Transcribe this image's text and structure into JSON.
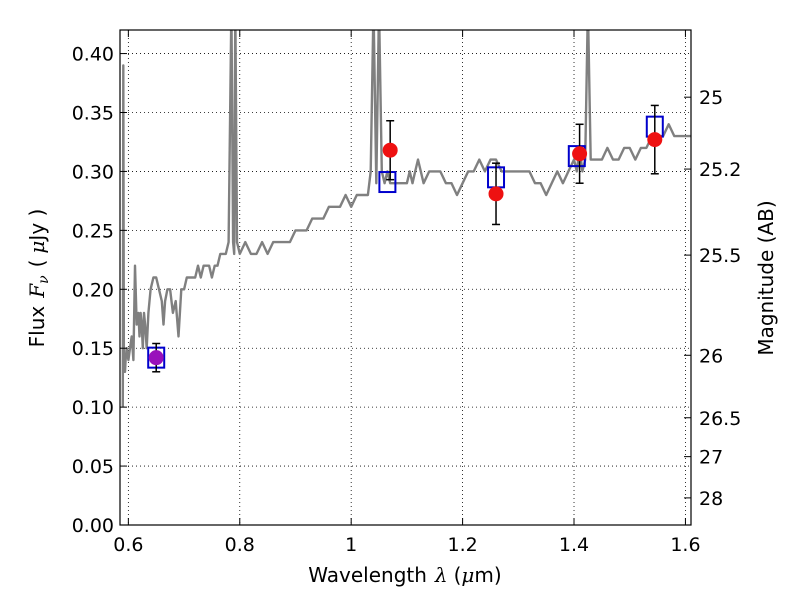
{
  "chart_data": {
    "type": "scatter",
    "xlabel": {
      "text": "Wavelength",
      "symbol": "λ",
      "unit_open": "(",
      "unit_mu": "μ",
      "unit_rest": "m)"
    },
    "ylabel": {
      "text": "Flux",
      "symbol": "F",
      "symbol_sub": "ν",
      "unit_open": "(",
      "unit_mu": "μ",
      "unit_rest": "Jy )"
    },
    "ylabel_right": "Magnitude (AB)",
    "xlim": [
      0.585,
      1.61
    ],
    "ylim": [
      0.0,
      0.42
    ],
    "grid": true,
    "xticks": [
      {
        "value": 0.6,
        "label": "0.6"
      },
      {
        "value": 0.8,
        "label": "0.8"
      },
      {
        "value": 1.0,
        "label": "1"
      },
      {
        "value": 1.2,
        "label": "1.2"
      },
      {
        "value": 1.4,
        "label": "1.4"
      },
      {
        "value": 1.6,
        "label": "1.6"
      }
    ],
    "yticks": [
      {
        "value": 0.0,
        "label": "0.00"
      },
      {
        "value": 0.05,
        "label": "0.05"
      },
      {
        "value": 0.1,
        "label": "0.10"
      },
      {
        "value": 0.15,
        "label": "0.15"
      },
      {
        "value": 0.2,
        "label": "0.20"
      },
      {
        "value": 0.25,
        "label": "0.25"
      },
      {
        "value": 0.3,
        "label": "0.30"
      },
      {
        "value": 0.35,
        "label": "0.35"
      },
      {
        "value": 0.4,
        "label": "0.40"
      }
    ],
    "right_ticks": [
      {
        "flux": 0.363,
        "label": "25"
      },
      {
        "flux": 0.302,
        "label": "25.2"
      },
      {
        "flux": 0.229,
        "label": "25.5"
      },
      {
        "flux": 0.144,
        "label": "26"
      },
      {
        "flux": 0.091,
        "label": "26.5"
      },
      {
        "flux": 0.058,
        "label": "27"
      },
      {
        "flux": 0.023,
        "label": "28"
      }
    ],
    "colors": {
      "spectrum": "#808080",
      "model_box": "#0000cc",
      "observed": "#ee1111",
      "observed_optical": "#9911bb",
      "errorbar": "#000000",
      "grid": "#000000"
    },
    "spectrum": {
      "x": [
        0.59,
        0.591,
        0.592,
        0.593,
        0.594,
        0.595,
        0.597,
        0.6,
        0.603,
        0.606,
        0.609,
        0.612,
        0.615,
        0.618,
        0.62,
        0.622,
        0.624,
        0.626,
        0.628,
        0.63,
        0.633,
        0.636,
        0.64,
        0.645,
        0.65,
        0.655,
        0.66,
        0.663,
        0.666,
        0.67,
        0.675,
        0.68,
        0.685,
        0.69,
        0.695,
        0.7,
        0.705,
        0.71,
        0.715,
        0.72,
        0.725,
        0.73,
        0.735,
        0.74,
        0.745,
        0.75,
        0.755,
        0.76,
        0.765,
        0.77,
        0.775,
        0.78,
        0.785,
        0.788,
        0.79,
        0.792,
        0.795,
        0.8,
        0.81,
        0.82,
        0.83,
        0.84,
        0.85,
        0.86,
        0.87,
        0.88,
        0.89,
        0.9,
        0.91,
        0.92,
        0.93,
        0.94,
        0.95,
        0.96,
        0.97,
        0.98,
        0.99,
        1.0,
        1.01,
        1.02,
        1.03,
        1.035,
        1.04,
        1.045,
        1.05,
        1.055,
        1.06,
        1.065,
        1.07,
        1.08,
        1.09,
        1.1,
        1.105,
        1.11,
        1.115,
        1.12,
        1.13,
        1.14,
        1.15,
        1.16,
        1.17,
        1.18,
        1.19,
        1.2,
        1.21,
        1.22,
        1.23,
        1.24,
        1.25,
        1.26,
        1.27,
        1.28,
        1.29,
        1.3,
        1.31,
        1.32,
        1.33,
        1.34,
        1.35,
        1.36,
        1.37,
        1.38,
        1.39,
        1.4,
        1.405,
        1.41,
        1.415,
        1.42,
        1.425,
        1.43,
        1.44,
        1.45,
        1.46,
        1.47,
        1.48,
        1.49,
        1.5,
        1.51,
        1.52,
        1.53,
        1.54,
        1.55,
        1.56,
        1.57,
        1.58,
        1.59,
        1.6,
        1.61
      ],
      "y": [
        0.1,
        0.39,
        0.13,
        0.14,
        0.13,
        0.14,
        0.15,
        0.14,
        0.15,
        0.16,
        0.14,
        0.22,
        0.17,
        0.18,
        0.16,
        0.18,
        0.17,
        0.15,
        0.18,
        0.17,
        0.15,
        0.18,
        0.2,
        0.21,
        0.21,
        0.2,
        0.19,
        0.17,
        0.19,
        0.2,
        0.2,
        0.18,
        0.19,
        0.16,
        0.2,
        0.2,
        0.21,
        0.21,
        0.21,
        0.21,
        0.22,
        0.21,
        0.22,
        0.22,
        0.22,
        0.21,
        0.22,
        0.22,
        0.23,
        0.23,
        0.23,
        0.24,
        0.44,
        0.24,
        0.23,
        0.44,
        0.24,
        0.23,
        0.24,
        0.23,
        0.23,
        0.24,
        0.23,
        0.24,
        0.24,
        0.24,
        0.24,
        0.25,
        0.25,
        0.25,
        0.26,
        0.26,
        0.26,
        0.27,
        0.27,
        0.27,
        0.28,
        0.27,
        0.28,
        0.28,
        0.28,
        0.3,
        0.44,
        0.29,
        0.44,
        0.3,
        0.29,
        0.3,
        0.29,
        0.29,
        0.29,
        0.29,
        0.3,
        0.29,
        0.3,
        0.31,
        0.29,
        0.3,
        0.3,
        0.3,
        0.29,
        0.29,
        0.28,
        0.29,
        0.3,
        0.3,
        0.31,
        0.3,
        0.31,
        0.31,
        0.3,
        0.3,
        0.3,
        0.3,
        0.3,
        0.3,
        0.29,
        0.29,
        0.28,
        0.29,
        0.3,
        0.29,
        0.3,
        0.31,
        0.3,
        0.32,
        0.3,
        0.31,
        0.44,
        0.31,
        0.31,
        0.31,
        0.32,
        0.31,
        0.31,
        0.32,
        0.32,
        0.31,
        0.32,
        0.32,
        0.33,
        0.33,
        0.33,
        0.34,
        0.33,
        0.33,
        0.33,
        0.33
      ]
    },
    "model_points": [
      {
        "x": 0.65,
        "y": 0.142
      },
      {
        "x": 1.065,
        "y": 0.291
      },
      {
        "x": 1.26,
        "y": 0.295
      },
      {
        "x": 1.405,
        "y": 0.313
      },
      {
        "x": 1.545,
        "y": 0.338
      }
    ],
    "observed_points": [
      {
        "x": 0.65,
        "y": 0.142,
        "err": 0.012,
        "optical": true
      },
      {
        "x": 1.07,
        "y": 0.318,
        "err": 0.025,
        "optical": false
      },
      {
        "x": 1.26,
        "y": 0.281,
        "err": 0.026,
        "optical": false
      },
      {
        "x": 1.41,
        "y": 0.315,
        "err": 0.025,
        "optical": false
      },
      {
        "x": 1.545,
        "y": 0.327,
        "err": 0.029,
        "optical": false
      }
    ]
  }
}
